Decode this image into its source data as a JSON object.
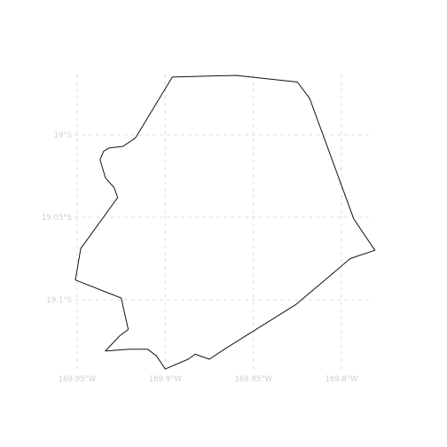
{
  "map": {
    "graticule": {
      "longitudes": [
        {
          "value": -169.95,
          "label": "169.95°W"
        },
        {
          "value": -169.9,
          "label": "169.9°W"
        },
        {
          "value": -169.85,
          "label": "169.85°W"
        },
        {
          "value": -169.8,
          "label": "169.8°W"
        }
      ],
      "latitudes": [
        {
          "value": -19.0,
          "label": "19°S"
        },
        {
          "value": -19.05,
          "label": "19.05°S"
        },
        {
          "value": -19.1,
          "label": "19.1°S"
        }
      ],
      "line_style": "dashed",
      "line_color": "#dcdcdc",
      "label_color": "#cfcfcf"
    },
    "outline_color": "#111111",
    "coastline": [
      [
        -169.896,
        -18.965
      ],
      [
        -169.86,
        -18.964
      ],
      [
        -169.825,
        -18.968
      ],
      [
        -169.818,
        -18.978
      ],
      [
        -169.793,
        -19.051
      ],
      [
        -169.781,
        -19.07
      ],
      [
        -169.795,
        -19.075
      ],
      [
        -169.806,
        -19.085
      ],
      [
        -169.826,
        -19.103
      ],
      [
        -169.865,
        -19.129
      ],
      [
        -169.875,
        -19.136
      ],
      [
        -169.883,
        -19.133
      ],
      [
        -169.887,
        -19.136
      ],
      [
        -169.9,
        -19.142
      ],
      [
        -169.905,
        -19.134
      ],
      [
        -169.91,
        -19.13
      ],
      [
        -169.92,
        -19.13
      ],
      [
        -169.934,
        -19.131
      ],
      [
        -169.926,
        -19.122
      ],
      [
        -169.921,
        -19.118
      ],
      [
        -169.925,
        -19.099
      ],
      [
        -169.951,
        -19.088
      ],
      [
        -169.948,
        -19.069
      ],
      [
        -169.927,
        -19.038
      ],
      [
        -169.929,
        -19.032
      ],
      [
        -169.934,
        -19.026
      ],
      [
        -169.937,
        -19.015
      ],
      [
        -169.935,
        -19.01
      ],
      [
        -169.932,
        -19.008
      ],
      [
        -169.924,
        -19.007
      ],
      [
        -169.917,
        -19.002
      ]
    ]
  }
}
